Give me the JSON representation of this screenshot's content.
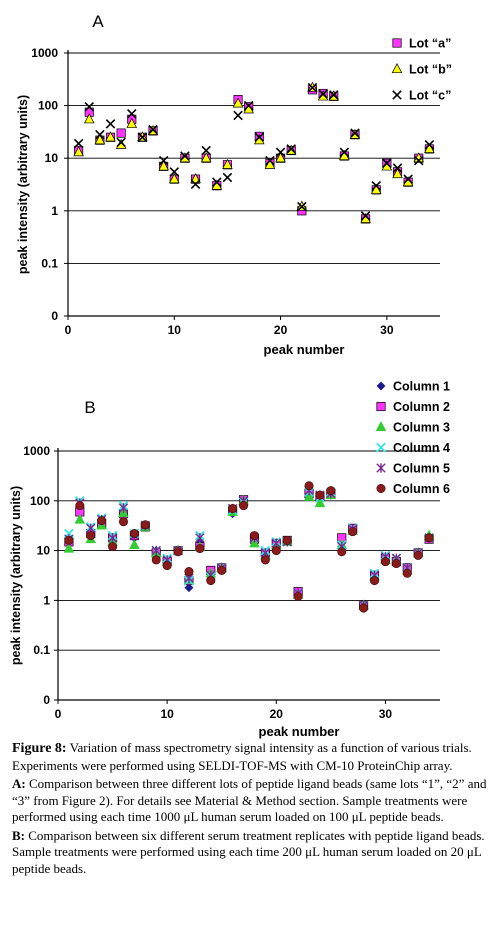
{
  "chart_data": [
    {
      "type": "scatter",
      "panel_label": "A",
      "xlabel": "peak number",
      "ylabel": "peak intensity (arbitrary units)",
      "xlim": [
        0,
        35
      ],
      "ylim": [
        0,
        1000
      ],
      "log_scale": true,
      "grid": true,
      "legend_position": "top-right",
      "x_ticks": [
        0,
        10,
        20,
        30
      ],
      "y_ticks": [
        "1000",
        "100",
        "10",
        "1",
        "0.1",
        "0"
      ],
      "series": [
        {
          "name": "Lot “a”",
          "marker": "square",
          "color": "#ff33ff",
          "x": [
            1,
            2,
            3,
            4,
            5,
            6,
            7,
            8,
            9,
            10,
            11,
            12,
            13,
            14,
            15,
            16,
            17,
            18,
            19,
            20,
            21,
            22,
            23,
            24,
            25,
            26,
            27,
            28,
            29,
            30,
            31,
            32,
            33,
            34
          ],
          "y": [
            14,
            75,
            22,
            25,
            30,
            55,
            25,
            33,
            7,
            4,
            10,
            4,
            10,
            3,
            7.5,
            130,
            95,
            26,
            8,
            10,
            14,
            1,
            200,
            170,
            150,
            11,
            28,
            0.7,
            2.5,
            8,
            5.5,
            3.5,
            10,
            15
          ]
        },
        {
          "name": "Lot “b”",
          "marker": "triangle",
          "color": "#ffff00",
          "x": [
            1,
            2,
            3,
            4,
            5,
            6,
            7,
            8,
            9,
            10,
            11,
            12,
            13,
            14,
            15,
            16,
            17,
            18,
            19,
            20,
            21,
            22,
            23,
            24,
            25,
            26,
            27,
            28,
            29,
            30,
            31,
            32,
            33,
            34
          ],
          "y": [
            13,
            55,
            22,
            25,
            18,
            45,
            25,
            33,
            7,
            4,
            10,
            4,
            10,
            3,
            7.5,
            110,
            85,
            22,
            7.5,
            10,
            14,
            1.2,
            220,
            150,
            150,
            11,
            28,
            0.7,
            2.5,
            7,
            5,
            3.5,
            10,
            15
          ]
        },
        {
          "name": "Lot “c”",
          "marker": "x",
          "color": "#000000",
          "x": [
            1,
            2,
            3,
            4,
            5,
            6,
            7,
            8,
            9,
            10,
            11,
            12,
            13,
            14,
            15,
            16,
            17,
            18,
            19,
            20,
            21,
            22,
            23,
            24,
            25,
            26,
            27,
            28,
            29,
            30,
            31,
            32,
            33,
            34
          ],
          "y": [
            19,
            95,
            28,
            45,
            20,
            70,
            25,
            35,
            9,
            5.5,
            11,
            3.2,
            14,
            3.5,
            4.3,
            65,
            100,
            25,
            9,
            13,
            15,
            1.2,
            220,
            165,
            160,
            13,
            30,
            0.8,
            3,
            8,
            6.5,
            4,
            9,
            18
          ]
        }
      ]
    },
    {
      "type": "scatter",
      "panel_label": "B",
      "xlabel": "peak number",
      "ylabel": "peak intensity (arbitrary units)",
      "xlim": [
        0,
        35
      ],
      "ylim": [
        0,
        1000
      ],
      "log_scale": true,
      "grid": true,
      "legend_position": "top-right",
      "x_ticks": [
        0,
        10,
        20,
        30
      ],
      "y_ticks": [
        "1000",
        "100",
        "10",
        "1",
        "0.1",
        "0"
      ],
      "series": [
        {
          "name": "Column 1",
          "marker": "diamond",
          "color": "#1a1a8c",
          "x": [
            1,
            2,
            3,
            4,
            5,
            6,
            7,
            8,
            9,
            10,
            11,
            12,
            13,
            14,
            15,
            16,
            17,
            18,
            19,
            20,
            21,
            22,
            23,
            24,
            25,
            26,
            27,
            28,
            29,
            30,
            31,
            32,
            33,
            34
          ],
          "y": [
            14,
            70,
            25,
            40,
            15,
            60,
            18,
            30,
            10,
            6,
            10,
            1.8,
            15,
            3,
            4,
            55,
            100,
            18,
            8,
            12,
            15,
            1.3,
            130,
            110,
            130,
            12,
            25,
            0.8,
            3,
            7,
            6.5,
            4,
            9,
            17
          ]
        },
        {
          "name": "Column 2",
          "marker": "square",
          "color": "#ff33ff",
          "x": [
            1,
            2,
            3,
            4,
            5,
            6,
            7,
            8,
            9,
            10,
            11,
            12,
            13,
            14,
            15,
            16,
            17,
            18,
            19,
            20,
            21,
            22,
            23,
            24,
            25,
            26,
            27,
            28,
            29,
            30,
            31,
            32,
            33,
            34
          ],
          "y": [
            15,
            60,
            22,
            35,
            18,
            55,
            20,
            30,
            9,
            6,
            10,
            2.5,
            12,
            4,
            4.5,
            65,
            105,
            17,
            9,
            14,
            16,
            1.5,
            140,
            120,
            140,
            18,
            28,
            0.8,
            3.2,
            7,
            6,
            4.5,
            9,
            17
          ]
        },
        {
          "name": "Column 3",
          "marker": "triangle",
          "color": "#33cc33",
          "x": [
            1,
            2,
            3,
            4,
            5,
            6,
            7,
            8,
            9,
            10,
            11,
            12,
            13,
            14,
            15,
            16,
            17,
            18,
            19,
            20,
            21,
            22,
            23,
            24,
            25,
            26,
            27,
            28,
            29,
            30,
            31,
            32,
            33,
            34
          ],
          "y": [
            11,
            42,
            17,
            32,
            15,
            57,
            13,
            30,
            9,
            6,
            10,
            2.6,
            12,
            3.5,
            4.5,
            60,
            100,
            14,
            8,
            13,
            15,
            1.3,
            120,
            90,
            130,
            13,
            25,
            0.8,
            3,
            6.5,
            6.5,
            4,
            9,
            20
          ]
        },
        {
          "name": "Column 4",
          "marker": "x",
          "color": "#33e6e6",
          "x": [
            1,
            2,
            3,
            4,
            5,
            6,
            7,
            8,
            9,
            10,
            11,
            12,
            13,
            14,
            15,
            16,
            17,
            18,
            19,
            20,
            21,
            22,
            23,
            24,
            25,
            26,
            27,
            28,
            29,
            30,
            31,
            32,
            33,
            34
          ],
          "y": [
            22,
            100,
            30,
            45,
            20,
            80,
            22,
            32,
            10,
            7,
            10,
            2.5,
            20,
            3,
            4.5,
            65,
            95,
            18,
            10,
            15,
            15,
            1.4,
            150,
            115,
            150,
            13,
            28,
            0.8,
            3.5,
            8,
            7,
            4.5,
            9,
            18
          ]
        },
        {
          "name": "Column 5",
          "marker": "star",
          "color": "#7a2a8c",
          "x": [
            1,
            2,
            3,
            4,
            5,
            6,
            7,
            8,
            9,
            10,
            11,
            12,
            13,
            14,
            15,
            16,
            17,
            18,
            19,
            20,
            21,
            22,
            23,
            24,
            25,
            26,
            27,
            28,
            29,
            30,
            31,
            32,
            33,
            34
          ],
          "y": [
            17,
            90,
            28,
            42,
            18,
            72,
            20,
            32,
            10,
            6.5,
            10,
            2.8,
            18,
            3.2,
            4.5,
            70,
            100,
            18,
            9,
            14,
            15,
            1.4,
            160,
            130,
            140,
            12,
            27,
            0.8,
            3.2,
            7.5,
            7,
            4.5,
            9,
            18
          ]
        },
        {
          "name": "Column 6",
          "marker": "circle",
          "color": "#8b1a1a",
          "x": [
            1,
            2,
            3,
            4,
            5,
            6,
            7,
            8,
            9,
            10,
            11,
            12,
            13,
            14,
            15,
            16,
            17,
            18,
            19,
            20,
            21,
            22,
            23,
            24,
            25,
            26,
            27,
            28,
            29,
            30,
            31,
            32,
            33,
            34
          ],
          "y": [
            16,
            80,
            20,
            40,
            12,
            38,
            22,
            33,
            6.5,
            5,
            9.5,
            3.8,
            11,
            2.5,
            4,
            70,
            80,
            20,
            6.5,
            10,
            16,
            1.2,
            200,
            130,
            160,
            9.5,
            24,
            0.7,
            2.5,
            6,
            5.5,
            3.5,
            8,
            18
          ]
        }
      ]
    }
  ],
  "caption": {
    "title": "Figure 8:",
    "text": " Variation of mass spectrometry signal intensity as a function of various trials. Experiments were performed using SELDI-TOF-MS with CM-10 ProteinChip array.",
    "a_label": "A:",
    "a_text": " Comparison between three different lots of peptide ligand beads (same lots “1”, “2” and “3” from Figure 2). For details see Material & Method section. Sample treatments were performed using each time 1000 μL human serum loaded on 100 μL peptide beads.",
    "b_label": "B:",
    "b_text": " Comparison between six different serum treatment replicates with peptide ligand beads. Sample treatments were performed using each time 200 μL human serum loaded on 20 μL peptide beads."
  }
}
